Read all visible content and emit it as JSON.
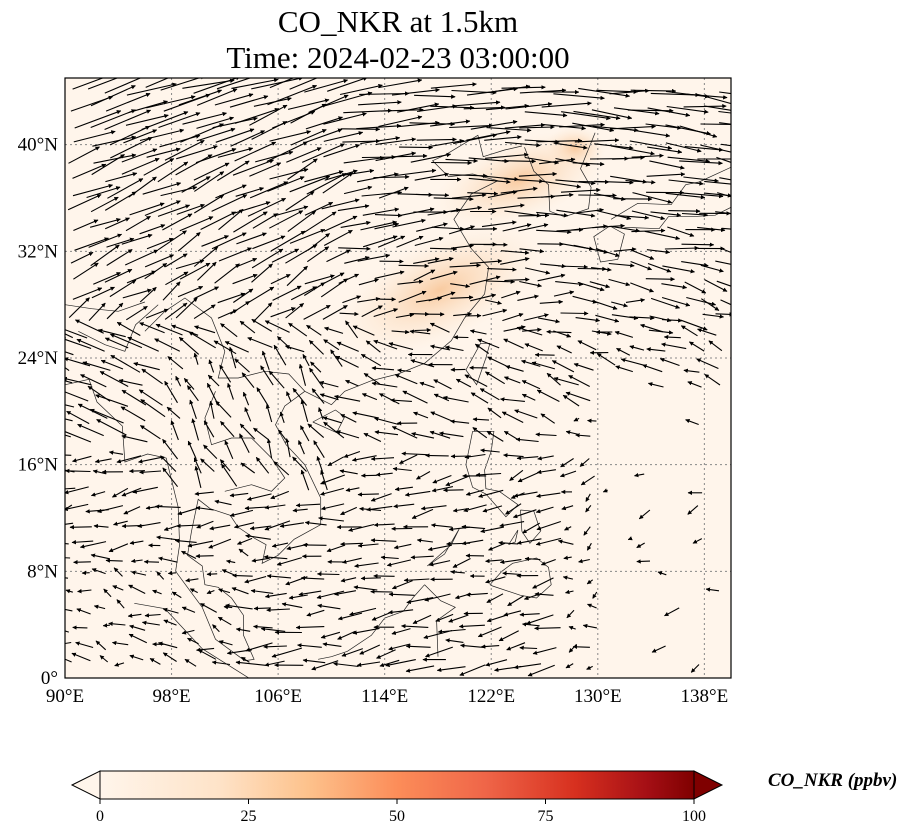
{
  "title": {
    "line1": "CO_NKR at 1.5km",
    "line2": "Time: 2024-02-23 03:00:00"
  },
  "map": {
    "lon_range": [
      90,
      140
    ],
    "lat_range": [
      0,
      45
    ],
    "lon_ticks": [
      "90°E",
      "98°E",
      "106°E",
      "114°E",
      "122°E",
      "130°E",
      "138°E"
    ],
    "lat_ticks": [
      "0°",
      "8°N",
      "16°N",
      "24°N",
      "32°N",
      "40°N"
    ],
    "gridlines": "dotted",
    "background_color": "#fff5eb",
    "overlay": "wind vectors (quiver) and coastlines"
  },
  "colorbar": {
    "label": "CO_NKR (ppbv)",
    "ticks": [
      "0",
      "25",
      "50",
      "75",
      "100"
    ],
    "range": [
      0,
      100
    ],
    "colormap": "Oranges-Red (OrRd)",
    "extend": "both",
    "colors": [
      "#fff5eb",
      "#fdd0a2",
      "#fd8d3c",
      "#d94801",
      "#a50f15",
      "#67000d"
    ]
  }
}
